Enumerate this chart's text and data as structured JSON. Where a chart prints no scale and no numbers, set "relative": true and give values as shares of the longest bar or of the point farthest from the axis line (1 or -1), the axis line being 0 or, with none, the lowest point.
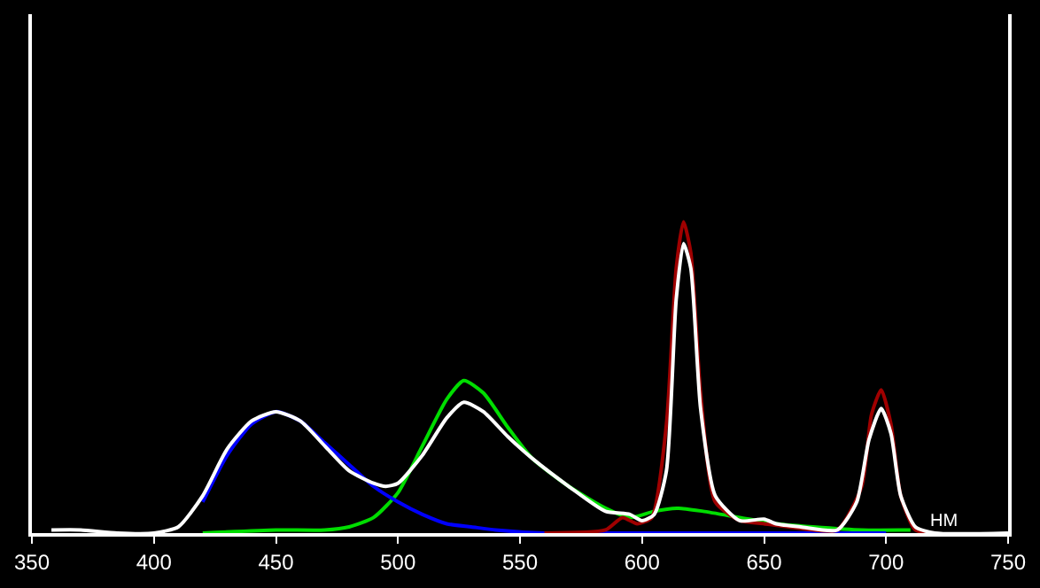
{
  "chart_data": {
    "type": "line",
    "relative": true,
    "xlabel": "НМ",
    "xlim": [
      350,
      750
    ],
    "xticks": [
      350,
      400,
      450,
      500,
      550,
      600,
      650,
      700,
      750
    ],
    "grid": false,
    "marker": "none",
    "line_style": "solid",
    "series": [
      {
        "color": "#00dd00",
        "x": [
          420,
          450,
          470,
          480,
          490,
          500,
          510,
          520,
          527,
          535,
          545,
          555,
          570,
          585,
          595,
          605,
          615,
          625,
          640,
          655,
          670,
          690,
          710
        ],
        "values": [
          0.0,
          0.01,
          0.01,
          0.02,
          0.05,
          0.13,
          0.28,
          0.43,
          0.49,
          0.45,
          0.34,
          0.24,
          0.15,
          0.08,
          0.05,
          0.07,
          0.08,
          0.07,
          0.05,
          0.03,
          0.02,
          0.01,
          0.01
        ]
      },
      {
        "color": "#0000ff",
        "x": [
          420,
          430,
          440,
          450,
          460,
          470,
          480,
          490,
          500,
          510,
          520,
          530,
          540,
          560,
          600,
          650,
          700
        ],
        "values": [
          0.1,
          0.25,
          0.35,
          0.39,
          0.36,
          0.29,
          0.22,
          0.15,
          0.1,
          0.06,
          0.03,
          0.02,
          0.01,
          0.0,
          0.0,
          0.0,
          0.0
        ]
      },
      {
        "color": "#a00000",
        "x": [
          560,
          585,
          592,
          598,
          604,
          610,
          614,
          617,
          620,
          624,
          630,
          640,
          650,
          660,
          680,
          690,
          694,
          698,
          702,
          706,
          712,
          720
        ],
        "values": [
          0.0,
          0.01,
          0.05,
          0.03,
          0.05,
          0.35,
          0.85,
          1.0,
          0.9,
          0.45,
          0.1,
          0.04,
          0.03,
          0.02,
          0.01,
          0.15,
          0.38,
          0.46,
          0.35,
          0.12,
          0.01,
          0.0
        ]
      },
      {
        "color": "#ffffff",
        "x": [
          358,
          370,
          385,
          400,
          410,
          420,
          430,
          440,
          450,
          460,
          470,
          480,
          490,
          495,
          500,
          510,
          520,
          527,
          535,
          545,
          555,
          570,
          585,
          595,
          600,
          605,
          610,
          614,
          617,
          620,
          624,
          630,
          640,
          650,
          655,
          665,
          680,
          688,
          693,
          698,
          702,
          706,
          712,
          720,
          750
        ],
        "values": [
          0.01,
          0.01,
          0.0,
          0.0,
          0.02,
          0.12,
          0.27,
          0.36,
          0.39,
          0.36,
          0.28,
          0.2,
          0.16,
          0.15,
          0.16,
          0.25,
          0.37,
          0.42,
          0.39,
          0.31,
          0.24,
          0.15,
          0.07,
          0.06,
          0.04,
          0.06,
          0.2,
          0.75,
          0.93,
          0.85,
          0.4,
          0.12,
          0.04,
          0.045,
          0.03,
          0.02,
          0.01,
          0.1,
          0.3,
          0.4,
          0.32,
          0.12,
          0.02,
          0.0,
          0.0
        ]
      }
    ]
  }
}
